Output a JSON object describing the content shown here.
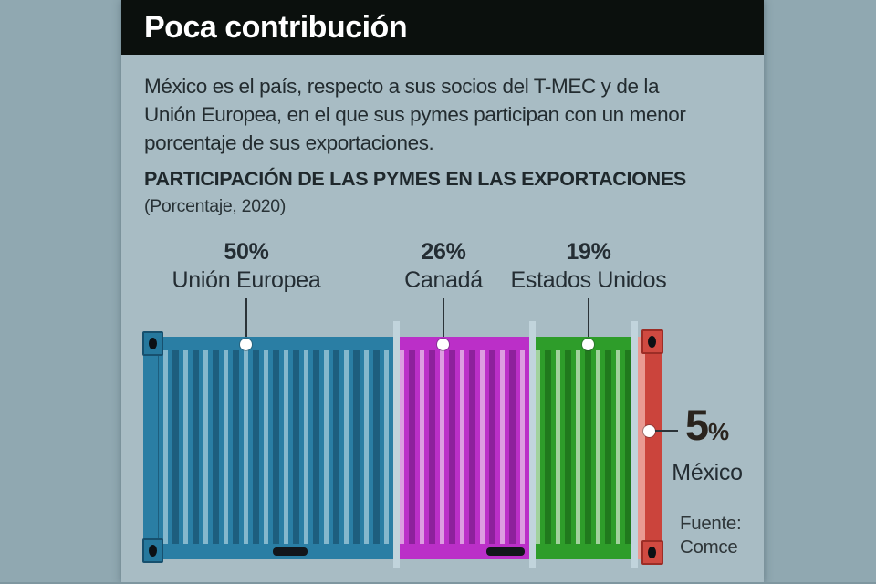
{
  "header": {
    "title": "Poca contribución"
  },
  "intro": {
    "lines": [
      "México es el país, respecto a sus socios del T-MEC y de la",
      "Unión Europea, en el que sus pymes participan con un menor",
      "porcentaje de sus exportaciones."
    ]
  },
  "chart_data": {
    "type": "bar",
    "subtype": "horizontal-stacked-pictogram-shipping-container",
    "title": "PARTICIPACIÓN DE LAS PYMES EN LAS EXPORTACIONES",
    "subtitle": "(Porcentaje, 2020)",
    "unit": "%",
    "categories": [
      "Unión Europea",
      "Canadá",
      "Estados Unidos",
      "México"
    ],
    "values": [
      50,
      26,
      19,
      5
    ],
    "labels": [
      {
        "pct": "50%",
        "name": "Unión Europea"
      },
      {
        "pct": "26%",
        "name": "Canadá"
      },
      {
        "pct": "19%",
        "name": "Estados Unidos"
      },
      {
        "pct": "5%",
        "pct_big": "5",
        "pct_sign": "%",
        "name": "México"
      }
    ],
    "colors": {
      "union_europea": "#2a7ea4",
      "canada": "#bb2fc8",
      "estados_unidos": "#2e9d2a",
      "mexico": "#cb443c",
      "divider": "#c1d4dc",
      "panel_background": "#a8bcc4",
      "page_background": "#90a8b1",
      "header_bar": "#0b100d"
    },
    "xlim": [
      0,
      100
    ],
    "legend_position": "labels-above-segments-and-right-of-mexico"
  },
  "source": {
    "label": "Fuente:",
    "name": "Comce"
  }
}
